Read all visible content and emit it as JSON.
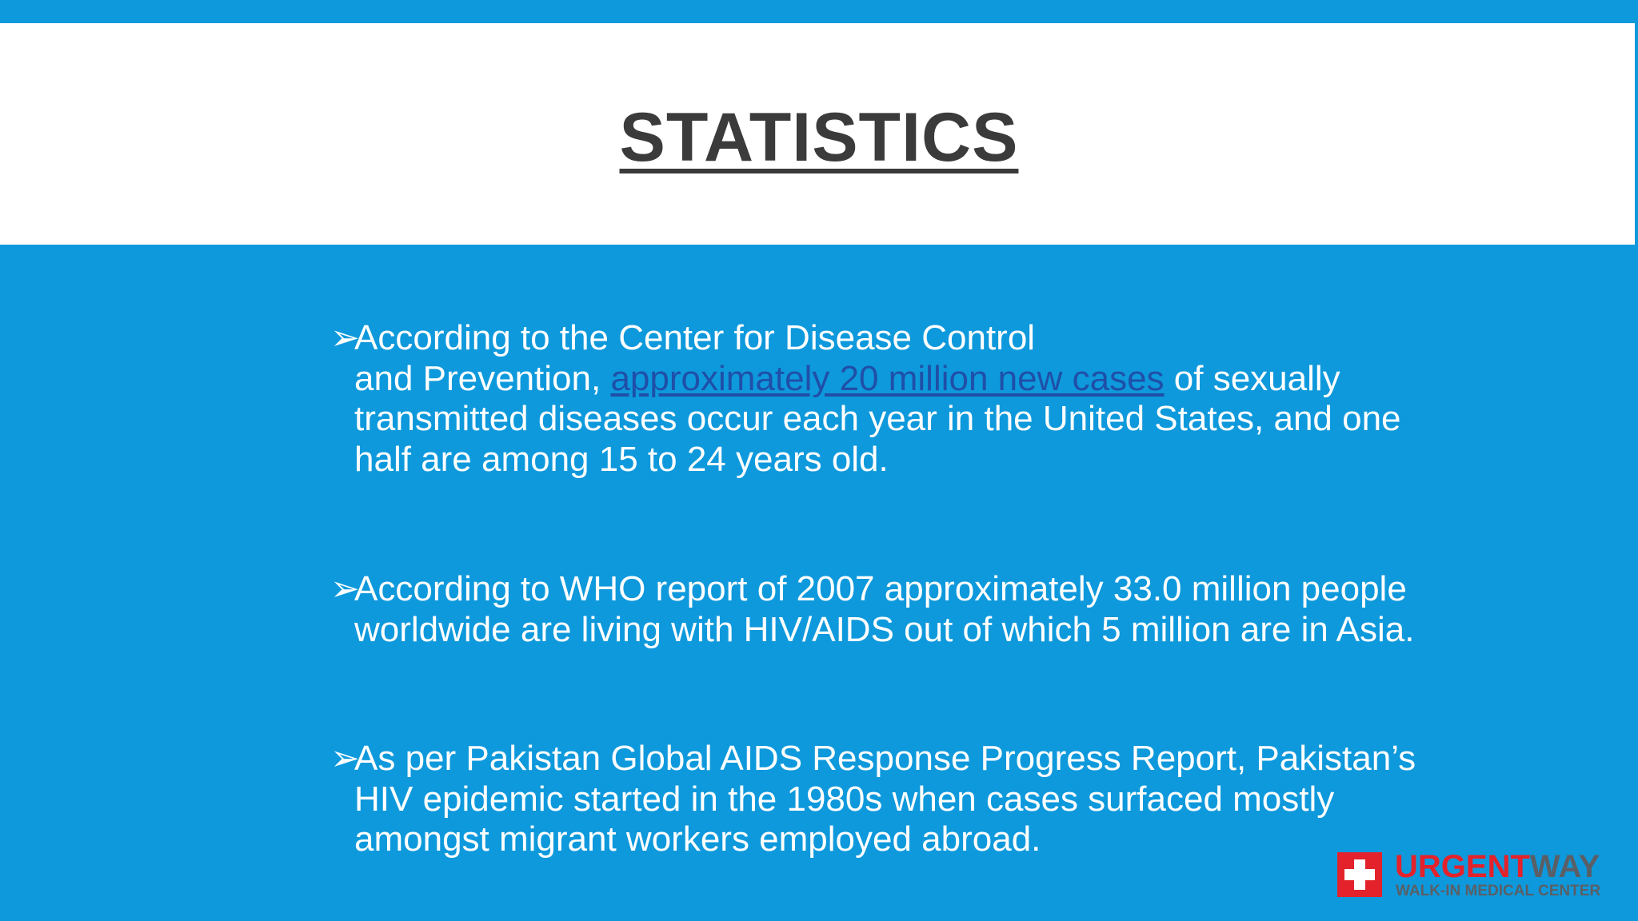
{
  "slide": {
    "title": "STATISTICS",
    "bullets": [
      {
        "text_before": "According to the Center for Disease Control",
        "text_line2_before": "and Prevention, ",
        "link": "approximately 20 million new cases",
        "text_after": " of sexually",
        "text_rest": "transmitted diseases occur each year in the United States, and one",
        "text_rest2": "half are among 15 to 24 years old."
      },
      {
        "line1": "According to WHO report of 2007 approximately 33.0 million people",
        "line2": "worldwide are living with HIV/AIDS out of which 5 million are in Asia."
      },
      {
        "line1": "As per Pakistan Global AIDS Response Progress Report, Pakistan’s",
        "line2": "HIV epidemic started in the 1980s when cases surfaced mostly",
        "line3": "amongst migrant workers employed abroad."
      }
    ],
    "bullet_glyph": "➢"
  },
  "logo": {
    "word_urgent": "URGENT",
    "word_way": "WAY",
    "subtitle": "WALK-IN MEDICAL CENTER",
    "icon": "medical-cross-icon"
  },
  "colors": {
    "background": "#0e99dc",
    "title": "#3b3b3b",
    "link": "#1f4fa8",
    "brand_red": "#e3222b",
    "brand_gray": "#5a5f66"
  }
}
